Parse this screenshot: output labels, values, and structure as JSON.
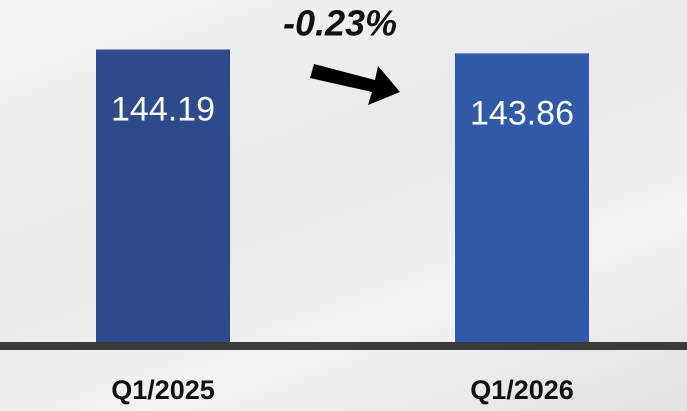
{
  "chart_data": {
    "type": "bar",
    "categories": [
      "Q1/2025",
      "Q1/2026"
    ],
    "values": [
      144.19,
      143.86
    ],
    "colors": [
      "#2e4a8a",
      "#3059a8"
    ],
    "ylim": [
      119,
      145
    ],
    "annotation": "-0.23%"
  }
}
